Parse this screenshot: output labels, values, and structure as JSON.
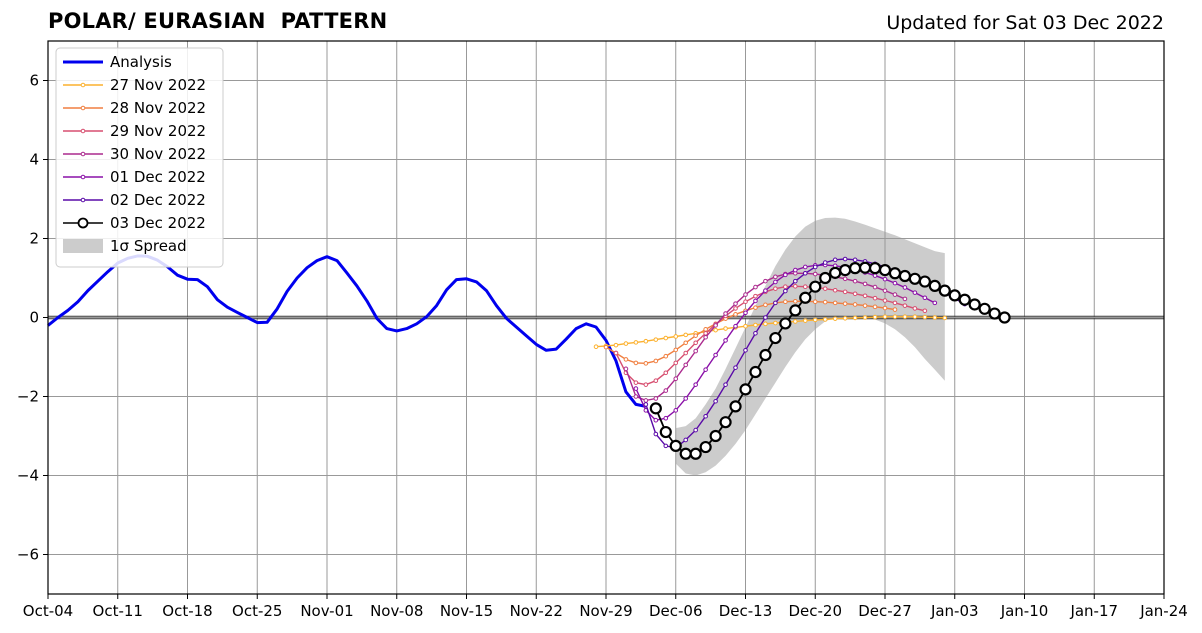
{
  "title_left": "POLAR/ EURASIAN  PATTERN",
  "title_right": "Updated for Sat 03 Dec 2022",
  "chart_data": {
    "type": "line",
    "title": "POLAR/ EURASIAN  PATTERN",
    "subtitle": "Updated for Sat 03 Dec 2022",
    "xlabel": "",
    "ylabel": "",
    "x_start": "2022-10-04",
    "x_end": "2023-01-24",
    "ylim": [
      -7,
      7
    ],
    "yticks": [
      -6,
      -4,
      -2,
      0,
      2,
      4,
      6
    ],
    "ytick_labels": [
      "−6",
      "−4",
      "−2",
      "0",
      "2",
      "4",
      "6"
    ],
    "xticks": [
      "2022-10-04",
      "2022-10-11",
      "2022-10-18",
      "2022-10-25",
      "2022-11-01",
      "2022-11-08",
      "2022-11-15",
      "2022-11-22",
      "2022-11-29",
      "2022-12-06",
      "2022-12-13",
      "2022-12-20",
      "2022-12-27",
      "2023-01-03",
      "2023-01-10",
      "2023-01-17",
      "2023-01-24"
    ],
    "xtick_labels": [
      "Oct-04",
      "Oct-11",
      "Oct-18",
      "Oct-25",
      "Nov-01",
      "Nov-08",
      "Nov-15",
      "Nov-22",
      "Nov-29",
      "Dec-06",
      "Dec-13",
      "Dec-20",
      "Dec-27",
      "Jan-03",
      "Jan-10",
      "Jan-17",
      "Jan-24"
    ],
    "grid": true,
    "legend_position": "top-left",
    "analysis": {
      "name": "Analysis",
      "color": "#0000ee",
      "start": "2022-10-04",
      "values": [
        -0.2,
        0.0,
        0.18,
        0.4,
        0.68,
        0.92,
        1.16,
        1.38,
        1.5,
        1.56,
        1.55,
        1.45,
        1.28,
        1.07,
        0.97,
        0.96,
        0.78,
        0.45,
        0.26,
        0.13,
        0.0,
        -0.13,
        -0.12,
        0.22,
        0.66,
        1.0,
        1.26,
        1.44,
        1.54,
        1.44,
        1.13,
        0.8,
        0.42,
        -0.02,
        -0.28,
        -0.34,
        -0.28,
        -0.16,
        0.02,
        0.3,
        0.7,
        0.96,
        0.98,
        0.9,
        0.68,
        0.3,
        -0.02,
        -0.24,
        -0.46,
        -0.68,
        -0.83,
        -0.8,
        -0.55,
        -0.28,
        -0.16,
        -0.24,
        -0.58,
        -1.1,
        -1.88,
        -2.2,
        -2.25
      ]
    },
    "forecasts": [
      {
        "name": "27 Nov 2022",
        "color": "#fcb12e",
        "start": "2022-11-28",
        "values": [
          -0.74,
          -0.72,
          -0.7,
          -0.66,
          -0.63,
          -0.6,
          -0.56,
          -0.52,
          -0.48,
          -0.44,
          -0.4,
          -0.36,
          -0.32,
          -0.28,
          -0.25,
          -0.22,
          -0.19,
          -0.16,
          -0.14,
          -0.12,
          -0.1,
          -0.08,
          -0.06,
          -0.05,
          -0.03,
          -0.02,
          -0.01,
          0.0,
          0.01,
          0.02,
          0.02,
          0.02,
          0.02,
          0.01,
          0.0,
          -0.01
        ]
      },
      {
        "name": "28 Nov 2022",
        "color": "#f07f40",
        "start": "2022-11-29",
        "values": [
          -0.75,
          -0.9,
          -1.06,
          -1.15,
          -1.16,
          -1.1,
          -0.98,
          -0.82,
          -0.64,
          -0.46,
          -0.3,
          -0.16,
          -0.03,
          0.08,
          0.17,
          0.25,
          0.32,
          0.37,
          0.4,
          0.41,
          0.41,
          0.4,
          0.39,
          0.37,
          0.35,
          0.33,
          0.3,
          0.27,
          0.24,
          0.2
        ]
      },
      {
        "name": "29 Nov 2022",
        "color": "#d74f70",
        "start": "2022-11-30",
        "values": [
          -0.9,
          -1.4,
          -1.65,
          -1.7,
          -1.6,
          -1.4,
          -1.15,
          -0.9,
          -0.64,
          -0.4,
          -0.17,
          0.04,
          0.23,
          0.4,
          0.54,
          0.65,
          0.73,
          0.78,
          0.79,
          0.78,
          0.76,
          0.73,
          0.69,
          0.65,
          0.6,
          0.55,
          0.49,
          0.43,
          0.37,
          0.3,
          0.23,
          0.17
        ]
      },
      {
        "name": "30 Nov 2022",
        "color": "#ab2a8e",
        "start": "2022-12-01",
        "values": [
          -1.3,
          -2.0,
          -2.1,
          -2.05,
          -1.85,
          -1.55,
          -1.2,
          -0.85,
          -0.5,
          -0.2,
          0.1,
          0.35,
          0.58,
          0.77,
          0.92,
          1.03,
          1.1,
          1.12,
          1.12,
          1.1,
          1.07,
          1.03,
          0.98,
          0.92,
          0.85,
          0.77,
          0.68,
          0.58,
          0.47
        ]
      },
      {
        "name": "01 Dec 2022",
        "color": "#8a10a8",
        "start": "2022-12-02",
        "values": [
          -1.8,
          -2.35,
          -2.6,
          -2.55,
          -2.35,
          -2.05,
          -1.7,
          -1.32,
          -0.95,
          -0.58,
          -0.22,
          0.12,
          0.42,
          0.68,
          0.9,
          1.08,
          1.2,
          1.28,
          1.32,
          1.33,
          1.31,
          1.27,
          1.21,
          1.14,
          1.06,
          0.97,
          0.87,
          0.76,
          0.63,
          0.5,
          0.37
        ]
      },
      {
        "name": "02 Dec 2022",
        "color": "#5a0aa8",
        "start": "2022-12-03",
        "values": [
          -2.2,
          -2.95,
          -3.25,
          -3.3,
          -3.1,
          -2.85,
          -2.5,
          -2.12,
          -1.7,
          -1.27,
          -0.83,
          -0.4,
          0.0,
          0.37,
          0.67,
          0.92,
          1.12,
          1.28,
          1.39,
          1.46,
          1.48,
          1.46,
          1.42,
          1.36,
          1.28,
          1.19,
          1.09,
          0.98,
          0.87,
          0.75,
          0.62,
          0.48,
          0.34
        ]
      },
      {
        "name": "03 Dec 2022",
        "color": "#000000",
        "start": "2022-12-04",
        "values": [
          -2.3,
          -2.9,
          -3.25,
          -3.45,
          -3.45,
          -3.28,
          -3.0,
          -2.65,
          -2.25,
          -1.82,
          -1.38,
          -0.95,
          -0.52,
          -0.15,
          0.18,
          0.5,
          0.78,
          1.0,
          1.13,
          1.2,
          1.25,
          1.26,
          1.25,
          1.2,
          1.12,
          1.05,
          0.98,
          0.91,
          0.8,
          0.68,
          0.56,
          0.45,
          0.33,
          0.22,
          0.1,
          0.0
        ]
      }
    ],
    "spread": {
      "name": "1σ Spread",
      "color": "#cccccc",
      "start": "2022-12-06",
      "upper": [
        -2.8,
        -2.75,
        -2.55,
        -2.2,
        -1.8,
        -1.3,
        -0.78,
        -0.25,
        0.3,
        0.8,
        1.3,
        1.72,
        2.05,
        2.3,
        2.45,
        2.52,
        2.53,
        2.5,
        2.43,
        2.35,
        2.26,
        2.17,
        2.08,
        1.98,
        1.88,
        1.78,
        1.68,
        1.63
      ],
      "lower": [
        -3.7,
        -3.95,
        -4.0,
        -3.92,
        -3.75,
        -3.5,
        -3.2,
        -2.85,
        -2.45,
        -2.05,
        -1.65,
        -1.25,
        -0.88,
        -0.55,
        -0.3,
        -0.1,
        0.0,
        0.05,
        0.05,
        0.02,
        -0.05,
        -0.15,
        -0.3,
        -0.5,
        -0.75,
        -1.05,
        -1.32,
        -1.6
      ]
    }
  }
}
